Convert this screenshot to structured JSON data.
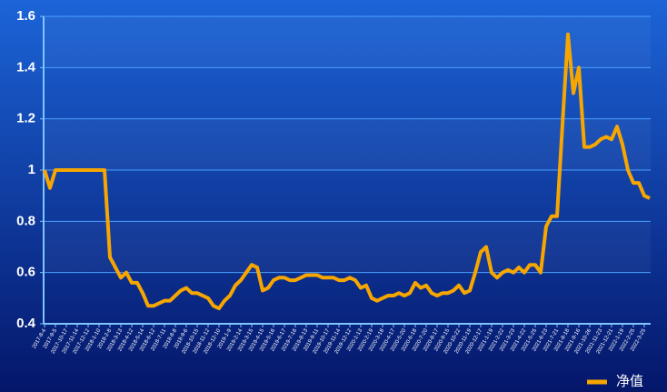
{
  "chart_data": {
    "type": "line",
    "categories": [
      "2017-8-4",
      null,
      "2017-9-5",
      null,
      "2017-10-17",
      null,
      "2017-11-14",
      null,
      "2017-12-12",
      null,
      "2018-1-10",
      null,
      "2018-2-8",
      null,
      "2018-3-13",
      null,
      "2018-4-12",
      null,
      "2018-5-14",
      null,
      "2018-6-12",
      null,
      "2018-7-11",
      null,
      "2018-8-8",
      null,
      "2018-9-6",
      null,
      "2018-10-15",
      null,
      "2018-11-12",
      null,
      "2018-12-10",
      null,
      "2019-1-9",
      null,
      "2019-2-14",
      null,
      "2019-3-15",
      null,
      "2019-4-15",
      null,
      "2019-5-16",
      null,
      "2019-6-17",
      null,
      "2019-7-16",
      null,
      "2019-8-13",
      null,
      "2019-9-11",
      null,
      "2019-10-17",
      null,
      "2019-11-14",
      null,
      "2019-12-12",
      null,
      "2020-1-13",
      null,
      "2020-2-19",
      null,
      "2020-3-18",
      null,
      "2020-4-17",
      null,
      "2020-5-20",
      null,
      "2020-6-18",
      null,
      "2020-7-20",
      null,
      "2020-8-17",
      null,
      "2020-9-15",
      null,
      "2020-10-22",
      null,
      "2020-11-19",
      null,
      "2020-12-17",
      null,
      "2021-1-19",
      null,
      "2021-2-22",
      null,
      "2021-3-23",
      null,
      "2021-4-22",
      null,
      "2021-5-25",
      null,
      "2021-6-23",
      null,
      "2021-7-21",
      null,
      "2021-8-18",
      null,
      "2021-9-16",
      null,
      "2021-10-26",
      null,
      "2021-11-23",
      null,
      "2021-12-21",
      null,
      "2022-1-19",
      null,
      "2022-2-25",
      null,
      "2022-3-25",
      null
    ],
    "series": [
      {
        "name": "净值",
        "color": "#f7a600",
        "values": [
          1.0,
          0.93,
          1.0,
          1.0,
          1.0,
          1.0,
          1.0,
          1.0,
          1.0,
          1.0,
          1.0,
          1.0,
          0.66,
          0.62,
          0.58,
          0.6,
          0.56,
          0.56,
          0.52,
          0.47,
          0.47,
          0.48,
          0.49,
          0.49,
          0.51,
          0.53,
          0.54,
          0.52,
          0.52,
          0.51,
          0.5,
          0.47,
          0.46,
          0.49,
          0.51,
          0.55,
          0.57,
          0.6,
          0.63,
          0.62,
          0.53,
          0.54,
          0.57,
          0.58,
          0.58,
          0.57,
          0.57,
          0.58,
          0.59,
          0.59,
          0.59,
          0.58,
          0.58,
          0.58,
          0.57,
          0.57,
          0.58,
          0.57,
          0.54,
          0.55,
          0.5,
          0.49,
          0.5,
          0.51,
          0.51,
          0.52,
          0.51,
          0.52,
          0.56,
          0.54,
          0.55,
          0.52,
          0.51,
          0.52,
          0.52,
          0.53,
          0.55,
          0.52,
          0.53,
          0.6,
          0.68,
          0.7,
          0.6,
          0.58,
          0.6,
          0.61,
          0.6,
          0.62,
          0.6,
          0.63,
          0.63,
          0.6,
          0.78,
          0.82,
          0.82,
          1.18,
          1.53,
          1.3,
          1.4,
          1.09,
          1.09,
          1.1,
          1.12,
          1.13,
          1.12,
          1.17,
          1.1,
          1.0,
          0.95,
          0.95,
          0.9,
          0.89
        ]
      }
    ],
    "ylim": [
      0.4,
      1.6
    ],
    "yticks": [
      0.4,
      0.6,
      0.8,
      1,
      1.2,
      1.4,
      1.6
    ],
    "grid": true,
    "legend": "bottom-right"
  }
}
